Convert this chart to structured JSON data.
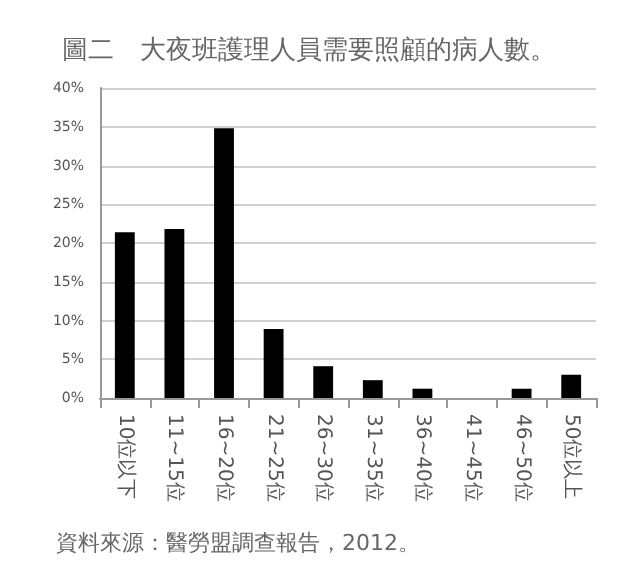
{
  "chart_data": {
    "type": "bar",
    "title": "圖二　大夜班護理人員需要照顧的病人數。",
    "categories": [
      "10位以下",
      "11~15位",
      "16~20位",
      "21~25位",
      "26~30位",
      "31~35位",
      "36~40位",
      "41~45位",
      "46~50位",
      "50位以上"
    ],
    "values": [
      21.4,
      21.8,
      34.8,
      8.9,
      4.1,
      2.3,
      1.2,
      0,
      1.2,
      3.0
    ],
    "color": "#000000",
    "ylim": [
      0,
      40
    ],
    "yticks": [
      {
        "value": 0,
        "label": "0%"
      },
      {
        "value": 5,
        "label": "5%"
      },
      {
        "value": 10,
        "label": "10%"
      },
      {
        "value": 15,
        "label": "15%"
      },
      {
        "value": 20,
        "label": "20%"
      },
      {
        "value": 25,
        "label": "25%"
      },
      {
        "value": 30,
        "label": "30%"
      },
      {
        "value": 35,
        "label": "35%"
      },
      {
        "value": 40,
        "label": "40%"
      }
    ],
    "grid": "y",
    "annotations": [
      "資料來源：醫勞盟調查報告，2012。"
    ]
  }
}
